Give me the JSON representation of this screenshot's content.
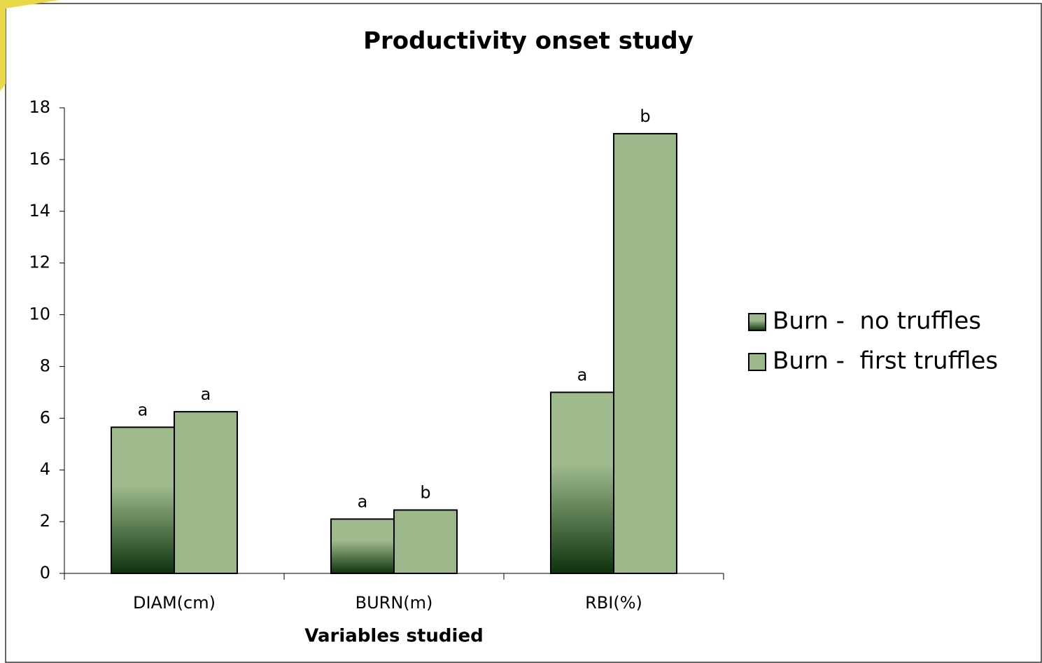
{
  "chart_data": {
    "type": "bar",
    "title": "Productivity onset study",
    "x_label": "Variables studied",
    "categories": [
      "DIAM(cm)",
      "BURN(m)",
      "RBI(%)"
    ],
    "series": [
      {
        "name": "Burn -  no truffles",
        "color": "#9fbb8d",
        "gradient_color": "#0d330d",
        "values": [
          5.65,
          2.1,
          7.0
        ],
        "labels": [
          "a",
          "a",
          "a"
        ]
      },
      {
        "name": "Burn -  first truffles",
        "color": "#9cb88a",
        "values": [
          6.25,
          2.45,
          17.0
        ],
        "labels": [
          "a",
          "b",
          "b"
        ]
      }
    ],
    "ylim": [
      0,
      18
    ],
    "yticks": [
      0,
      2,
      4,
      6,
      8,
      10,
      12,
      14,
      16,
      18
    ],
    "grid": false,
    "legend": "right"
  }
}
